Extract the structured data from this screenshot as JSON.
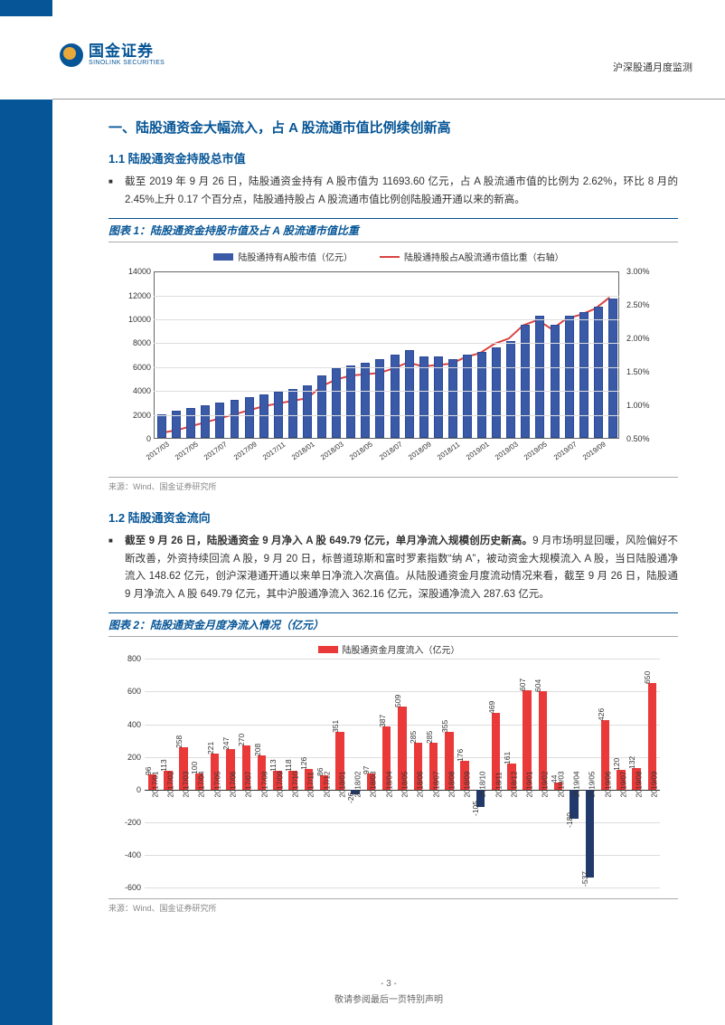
{
  "brand": {
    "cn": "国金证券",
    "en": "SINOLINK SECURITIES"
  },
  "header_right": "沪深股通月度监测",
  "section_title": "一、陆股通资金大幅流入，占 A 股流通市值比例续创新高",
  "s11_title": "1.1 陆股通资金持股总市值",
  "s11_para": "截至 2019 年 9 月 26 日，陆股通资金持有 A 股市值为 11693.60 亿元，占 A 股流通市值的比例为 2.62%，环比 8 月的 2.45%上升 0.17 个百分点，陆股通持股占 A 股流通市值比例创陆股通开通以来的新高。",
  "chart1": {
    "title": "图表 1：陆股通资金持股市值及占 A 股流通市值比重",
    "legend_bar": "陆股通持有A股市值（亿元）",
    "legend_line": "陆股通持股占A股流通市值比重（右轴）",
    "bar_color": "#3a5aa8",
    "line_color": "#d9423f",
    "background_color": "#ffffff",
    "grid_color": "#dddddd",
    "y_left_max": 14000,
    "y_left_step": 2000,
    "y_right_min": 0.5,
    "y_right_max": 3.0,
    "y_right_step": 0.5,
    "categories": [
      "2017/03",
      "2017/05",
      "2017/07",
      "2017/09",
      "2017/11",
      "2018/01",
      "2018/03",
      "2018/05",
      "2018/07",
      "2018/09",
      "2018/11",
      "2019/01",
      "2019/03",
      "2019/05",
      "2019/07",
      "2019/09"
    ],
    "bars_all": [
      2000,
      2280,
      2500,
      2740,
      2950,
      3180,
      3420,
      3650,
      3900,
      4120,
      4370,
      5250,
      5800,
      6050,
      6280,
      6620,
      6950,
      7320,
      6820,
      6800,
      6600,
      7000,
      7200,
      7600,
      8100,
      9500,
      10200,
      9500,
      10200,
      10500,
      11000,
      11694
    ],
    "line_all": [
      0.58,
      0.62,
      0.68,
      0.74,
      0.8,
      0.86,
      0.92,
      0.98,
      1.02,
      1.06,
      1.1,
      1.28,
      1.38,
      1.44,
      1.46,
      1.48,
      1.55,
      1.64,
      1.58,
      1.6,
      1.62,
      1.72,
      1.78,
      1.92,
      2.0,
      2.2,
      2.28,
      2.14,
      2.3,
      2.36,
      2.45,
      2.62
    ]
  },
  "source": "来源：Wind、国金证券研究所",
  "s12_title": "1.2 陆股通资金流向",
  "s12_para_bold": "截至 9 月 26 日，陆股通资金 9 月净入 A 股 649.79 亿元，单月净流入规模创历史新高。",
  "s12_para_rest": "9 月市场明显回暖，风险偏好不断改善，外资持续回流 A 股，9 月 20 日，标普道琼斯和富时罗素指数“纳 A”，被动资金大规模流入 A 股，当日陆股通净流入 148.62 亿元，创沪深港通开通以来单日净流入次高值。从陆股通资金月度流动情况来看，截至 9 月 26 日，陆股通 9 月净流入 A 股 649.79 亿元，其中沪股通净流入 362.16 亿元，深股通净流入 287.63 亿元。",
  "chart2": {
    "title": "图表 2：陆股通资金月度净流入情况（亿元）",
    "legend": "陆股通资金月度流入（亿元）",
    "pos_color": "#e93938",
    "neg_color": "#223a6b",
    "y_min": -600,
    "y_max": 800,
    "y_step": 200,
    "categories": [
      "2017/01",
      "2017/02",
      "2017/03",
      "2017/04",
      "2017/05",
      "2017/06",
      "2017/07",
      "2017/08",
      "2017/09",
      "2017/10",
      "2017/11",
      "2017/12",
      "2018/01",
      "2018/02",
      "2018/03",
      "2018/04",
      "2018/05",
      "2018/06",
      "2018/07",
      "2018/08",
      "2018/09",
      "2018/10",
      "2018/11",
      "2018/12",
      "2019/01",
      "2019/02",
      "2019/03",
      "2019/04",
      "2019/05",
      "2019/06",
      "2019/07",
      "2019/08",
      "2019/09"
    ],
    "values": [
      96,
      113,
      258,
      100,
      221,
      247,
      270,
      208,
      113,
      118,
      126,
      86,
      351,
      -26,
      97,
      387,
      509,
      285,
      285,
      355,
      176,
      -105,
      469,
      161,
      607,
      604,
      44,
      -180,
      -537,
      426,
      120,
      132,
      650
    ]
  },
  "footer": {
    "page": "- 3 -",
    "disclaimer": "敬请参阅最后一页特别声明"
  }
}
